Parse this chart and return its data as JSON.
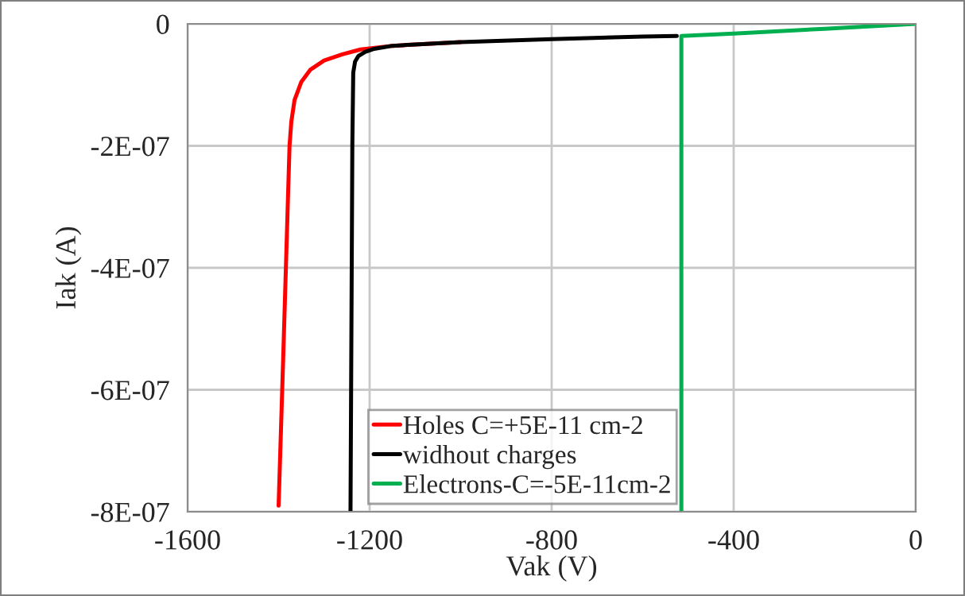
{
  "chart_data": {
    "type": "line",
    "xlabel": "Vak (V)",
    "ylabel": "Iak (A)",
    "xlim": [
      -1600,
      0
    ],
    "xticks": [
      -1600,
      -1200,
      -800,
      -400,
      0
    ],
    "ylim": [
      -8e-07,
      0
    ],
    "yticks": [
      {
        "value": -8e-07,
        "label": "-8E-07"
      },
      {
        "value": -6e-07,
        "label": "-6E-07"
      },
      {
        "value": -4e-07,
        "label": "-4E-07"
      },
      {
        "value": -2e-07,
        "label": "-2E-07"
      },
      {
        "value": 0,
        "label": "0"
      }
    ],
    "grid": true,
    "legend": "bottom",
    "marker": "none",
    "line_style": "solid",
    "series": [
      {
        "name": "Holes C=+5E-11 cm-2",
        "color": "#ff0000",
        "x": [
          -1400,
          -1390,
          -1380,
          -1376,
          -1372,
          -1365,
          -1350,
          -1330,
          -1300,
          -1260,
          -1220,
          -1150,
          -1000
        ],
        "values": [
          -7.9e-07,
          -5.5e-07,
          -3e-07,
          -2e-07,
          -1.6e-07,
          -1.25e-07,
          -9.5e-08,
          -7.5e-08,
          -6e-08,
          -5e-08,
          -4.2e-08,
          -3.6e-08,
          -3e-08
        ]
      },
      {
        "name": "widhout charges",
        "color": "#000000",
        "x": [
          -1242,
          -1240,
          -1238,
          -1236,
          -1232,
          -1225,
          -1210,
          -1190,
          -1150,
          -1000,
          -800,
          -600,
          -525
        ],
        "values": [
          -8e-07,
          -5e-07,
          -2e-07,
          -8e-08,
          -6.2e-08,
          -5.3e-08,
          -4.6e-08,
          -4.1e-08,
          -3.6e-08,
          -3e-08,
          -2.5e-08,
          -2.1e-08,
          -2e-08
        ]
      },
      {
        "name": "Electrons-C=-5E-11cm-2",
        "color": "#00b050",
        "x": [
          -515,
          -515,
          -400,
          -200,
          0
        ],
        "values": [
          -8e-07,
          -2e-08,
          -1.6e-08,
          -8e-09,
          0
        ]
      }
    ]
  }
}
